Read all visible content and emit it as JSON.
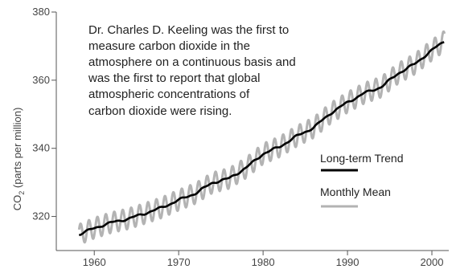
{
  "chart_data": {
    "type": "line",
    "title": "",
    "ylabel": "CO",
    "ylabel_sub": "2",
    "ylabel_rest": " (parts per million)",
    "xlabel": "",
    "xlim": [
      1955.5,
      2002
    ],
    "ylim": [
      310,
      380
    ],
    "xticks": [
      1960,
      1970,
      1980,
      1990,
      2000
    ],
    "yticks": [
      320,
      340,
      360,
      380
    ],
    "annotation": [
      "Dr. Charles D. Keeling was the first to",
      "measure carbon dioxide in the",
      "atmosphere on a continuous basis and",
      "was the first to report that global",
      "atmospheric concentrations of",
      "carbon dioxide were rising."
    ],
    "legend_position": "right-middle",
    "series": [
      {
        "name": "Long-term Trend",
        "color": "#000000",
        "x": [
          1958.2,
          1960,
          1962,
          1964,
          1966,
          1968,
          1970,
          1972,
          1974,
          1976,
          1978,
          1980,
          1982,
          1984,
          1986,
          1988,
          1990,
          1992,
          1994,
          1996,
          1998,
          2000,
          2001.5
        ],
        "y": [
          314.7,
          316.6,
          318.2,
          319.3,
          320.9,
          322.6,
          324.8,
          326.8,
          329.9,
          331.2,
          334.3,
          338.4,
          340.5,
          343.6,
          346.1,
          350.3,
          353.5,
          356.2,
          358.0,
          362.0,
          364.8,
          368.8,
          371.5
        ]
      },
      {
        "name": "Monthly Mean",
        "color": "#b3b3b3",
        "seasonal_amplitude": 3.0
      }
    ]
  }
}
